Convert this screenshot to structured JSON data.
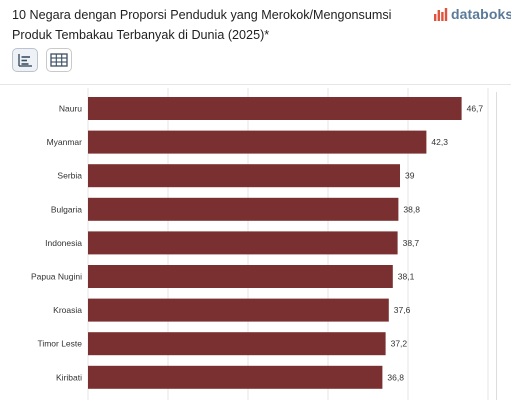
{
  "title": {
    "line1": "10 Negara dengan Proporsi Penduduk yang Merokok/Mengonsumsi",
    "line2": "Produk Tembakau Terbanyak di Dunia (2025)*"
  },
  "brand": {
    "name": "databoks"
  },
  "toolbar": {
    "chart_view_icon": "bar-chart-icon",
    "table_view_icon": "table-grid-icon"
  },
  "colors": {
    "bar": "#7a3030",
    "title": "#1f1f1f",
    "brand": "#5b7a99"
  },
  "chart_data": {
    "type": "bar",
    "orientation": "horizontal",
    "title": "10 Negara dengan Proporsi Penduduk yang Merokok/Mengonsumsi Produk Tembakau Terbanyak di Dunia (2025)*",
    "categories": [
      "Nauru",
      "Myanmar",
      "Serbia",
      "Bulgaria",
      "Indonesia",
      "Papua Nugini",
      "Kroasia",
      "Timor Leste",
      "Kiribati"
    ],
    "values": [
      46.7,
      42.3,
      39,
      38.8,
      38.7,
      38.1,
      37.6,
      37.2,
      36.8
    ],
    "value_labels": [
      "46,7",
      "42,3",
      "39",
      "38,8",
      "38,7",
      "38,1",
      "37,6",
      "37,2",
      "36,8"
    ],
    "xlim": [
      0,
      50
    ],
    "grid": true,
    "legend": "none"
  }
}
